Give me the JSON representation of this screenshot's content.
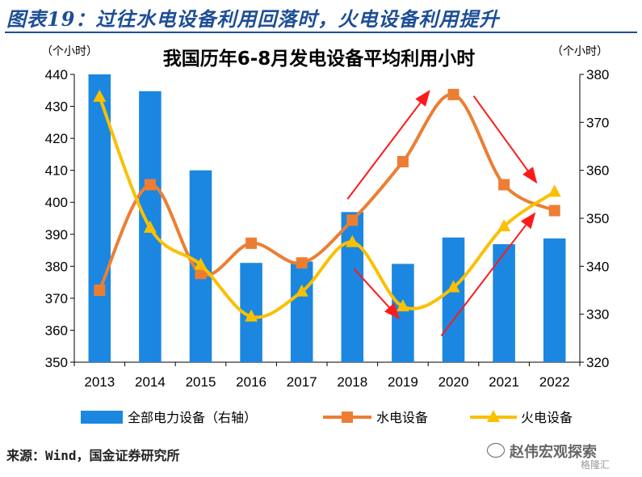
{
  "header": {
    "title": "图表19：过往水电设备利用回落时，火电设备利用提升"
  },
  "chart_data": {
    "type": "bar+line",
    "title": "我国历年6-8月发电设备平均利用小时",
    "left_axis_unit": "（个小时）",
    "right_axis_unit": "（个小时）",
    "categories": [
      "2013",
      "2014",
      "2015",
      "2016",
      "2017",
      "2018",
      "2019",
      "2020",
      "2021",
      "2022"
    ],
    "left_ylim": [
      350,
      440
    ],
    "left_ticks": [
      "350",
      "360",
      "370",
      "380",
      "390",
      "400",
      "410",
      "420",
      "430",
      "440"
    ],
    "right_ylim": [
      320,
      380
    ],
    "right_ticks": [
      "320",
      "330",
      "340",
      "350",
      "360",
      "370",
      "380"
    ],
    "series": [
      {
        "name": "全部电力设备（右轴）",
        "type": "bar",
        "axis": "right",
        "color": "#1b87e0",
        "values": [
          380,
          376.5,
          360,
          340.7,
          341,
          351.3,
          340.5,
          346,
          344.6,
          345.8
        ]
      },
      {
        "name": "水电设备",
        "type": "line",
        "axis": "right",
        "color": "#ec7e33",
        "marker": "square",
        "values": [
          335,
          357,
          338.5,
          344.8,
          340.7,
          349.6,
          361.8,
          375.8,
          357,
          351.6
        ]
      },
      {
        "name": "火电设备",
        "type": "line",
        "axis": "right",
        "color": "#fac000",
        "marker": "triangle",
        "values": [
          375.3,
          348,
          340.3,
          329.5,
          334.7,
          345,
          331.6,
          335.6,
          348.3,
          355.5
        ]
      }
    ],
    "legend_position": "bottom",
    "annotations": "red arrows indicating opposite trends of hydro and thermal utilization"
  },
  "footer": {
    "source": "来源：Wind，国金证券研究所",
    "wechat_name": "赵伟宏观探索",
    "watermark": "格隆汇"
  }
}
